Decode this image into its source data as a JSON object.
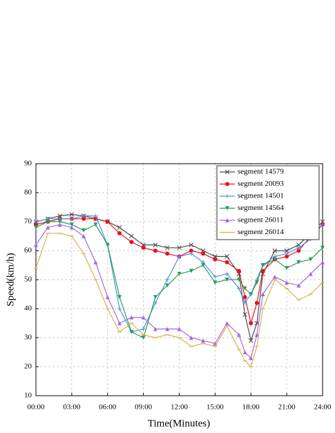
{
  "chart_data": {
    "type": "line",
    "xlabel": "Time(Minutes)",
    "ylabel": "Speed(km/h)",
    "x": [
      0,
      1,
      2,
      3,
      4,
      5,
      6,
      7,
      8,
      9,
      10,
      11,
      12,
      13,
      14,
      15,
      16,
      17,
      17.5,
      18,
      18.5,
      19,
      20,
      21,
      22,
      23,
      24
    ],
    "xlim": [
      0,
      24
    ],
    "xticks": [
      {
        "value": 0,
        "label": "00:00"
      },
      {
        "value": 3,
        "label": "03:00"
      },
      {
        "value": 6,
        "label": "06:00"
      },
      {
        "value": 9,
        "label": "09:00"
      },
      {
        "value": 12,
        "label": "12:00"
      },
      {
        "value": 15,
        "label": "15:00"
      },
      {
        "value": 18,
        "label": "18:00"
      },
      {
        "value": 21,
        "label": "21:00"
      },
      {
        "value": 24,
        "label": "24:00"
      }
    ],
    "ylim": [
      10,
      90
    ],
    "yticks": [
      10,
      20,
      30,
      40,
      50,
      60,
      70,
      80,
      90
    ],
    "grid": true,
    "legend": "upper right",
    "series": [
      {
        "name": "segment 14579",
        "color": "#4a4a4a",
        "marker": "x",
        "values": [
          70,
          71,
          72,
          72.5,
          72,
          71,
          70,
          68,
          65,
          62,
          62,
          61,
          61,
          62,
          60,
          58,
          58,
          52,
          38,
          29,
          35,
          52,
          60,
          60,
          62,
          66,
          70
        ]
      },
      {
        "name": "segment 20093",
        "color": "#e8101a",
        "marker": "circle",
        "values": [
          69,
          70,
          71,
          71,
          71,
          71,
          70,
          66,
          63,
          61,
          60,
          59,
          58,
          60,
          59,
          57,
          56,
          53,
          44,
          35,
          42,
          53,
          57,
          58,
          60,
          65,
          69
        ]
      },
      {
        "name": "segment 14501",
        "color": "#4f8fe6",
        "marker": "plus",
        "values": [
          70,
          71,
          71,
          71,
          72,
          72,
          62,
          40,
          32,
          33,
          42,
          50,
          58,
          59,
          56,
          51,
          52,
          47,
          42,
          45,
          50,
          55,
          58,
          59,
          61,
          64,
          69
        ]
      },
      {
        "name": "segment 14564",
        "color": "#2a9d57",
        "marker": "triangle-down",
        "values": [
          68,
          70,
          70,
          69,
          67,
          69,
          62,
          44,
          32,
          30,
          44,
          48,
          52,
          53,
          55,
          49,
          50,
          50,
          47,
          45,
          49,
          55,
          57,
          54,
          56,
          57,
          61
        ]
      },
      {
        "name": "segment 26011",
        "color": "#a865e8",
        "marker": "triangle-up",
        "values": [
          62,
          68,
          69,
          68,
          65,
          56,
          44,
          35,
          37,
          37,
          33,
          33,
          33,
          30,
          29,
          28,
          35,
          31,
          25,
          23,
          31,
          45,
          51,
          49,
          48,
          52,
          56
        ]
      },
      {
        "name": "segment 26014",
        "color": "#d9b24c",
        "marker": "dash",
        "values": [
          54,
          66,
          66,
          65,
          59,
          50,
          40,
          32,
          35,
          31,
          30,
          31,
          30,
          27,
          28,
          27,
          34,
          26,
          22,
          20,
          27,
          40,
          50,
          47,
          43,
          45,
          49
        ]
      }
    ]
  }
}
